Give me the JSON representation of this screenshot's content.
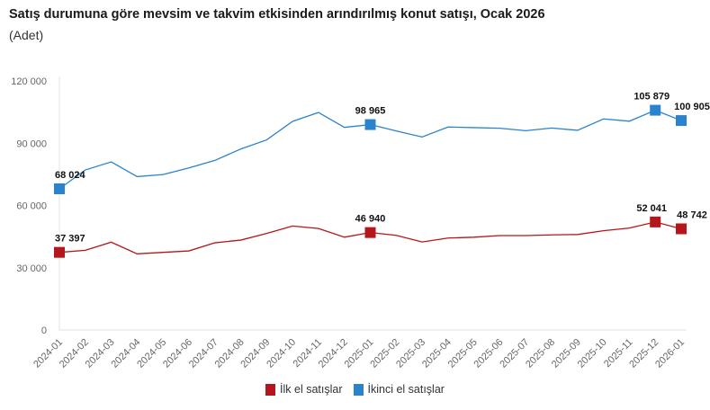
{
  "chart_data": {
    "type": "line",
    "title": "Satış durumuna göre mevsim ve takvim etkisinden arındırılmış konut satışı, Ocak 2026",
    "subtitle": "(Adet)",
    "xlabel": "",
    "ylabel": "",
    "ylim": [
      0,
      120000
    ],
    "yticks": [
      0,
      30000,
      60000,
      90000,
      120000
    ],
    "ytick_labels": [
      "0",
      "30 000",
      "60 000",
      "90 000",
      "120 000"
    ],
    "grid": false,
    "legend_position": "bottom",
    "categories": [
      "2024-01",
      "2024-02",
      "2024-03",
      "2024-04",
      "2024-05",
      "2024-06",
      "2024-07",
      "2024-08",
      "2024-09",
      "2024-10",
      "2024-11",
      "2024-12",
      "2025-01",
      "2025-02",
      "2025-03",
      "2025-04",
      "2025-05",
      "2025-06",
      "2025-07",
      "2025-08",
      "2025-09",
      "2025-10",
      "2025-11",
      "2025-12",
      "2026-01"
    ],
    "series": [
      {
        "name": "İlk el satışlar",
        "color": "#b5161b",
        "values": [
          37397,
          38400,
          42300,
          36700,
          37400,
          38100,
          42000,
          43300,
          46500,
          50100,
          48900,
          44700,
          46940,
          45600,
          42400,
          44300,
          44700,
          45500,
          45500,
          45800,
          46000,
          47800,
          49100,
          52041,
          48742
        ],
        "labeled_points": [
          {
            "index": 0,
            "label": "37 397"
          },
          {
            "index": 12,
            "label": "46 940"
          },
          {
            "index": 23,
            "label": "52 041"
          },
          {
            "index": 24,
            "label": "48 742"
          }
        ]
      },
      {
        "name": "İkinci el satışlar",
        "color": "#2a83cc",
        "values": [
          68024,
          77100,
          81000,
          73900,
          74900,
          78100,
          81700,
          87200,
          91600,
          100500,
          104800,
          97600,
          98965,
          95900,
          93000,
          97800,
          97500,
          97200,
          96000,
          97300,
          96200,
          101700,
          100600,
          105879,
          100905
        ],
        "labeled_points": [
          {
            "index": 0,
            "label": "68 024"
          },
          {
            "index": 12,
            "label": "98 965"
          },
          {
            "index": 23,
            "label": "105 879"
          },
          {
            "index": 24,
            "label": "100 905"
          }
        ]
      }
    ]
  }
}
